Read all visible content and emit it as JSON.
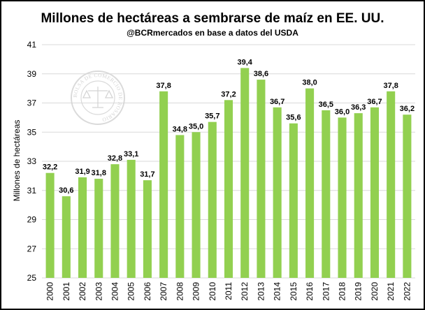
{
  "chart_data": {
    "type": "bar",
    "title": "Millones de hectáreas a sembrarse de maíz en EE. UU.",
    "subtitle": "@BCRmercados en base a datos del USDA",
    "xlabel": "",
    "ylabel": "Millones de hectáreas",
    "ylim": [
      25,
      41
    ],
    "yticks": [
      "25",
      "27",
      "29",
      "31",
      "33",
      "35",
      "37",
      "39",
      "41"
    ],
    "grid": true,
    "bar_color": "#92d050",
    "categories": [
      "2000",
      "2001",
      "2002",
      "2003",
      "2004",
      "2005",
      "2006",
      "2007",
      "2008",
      "2009",
      "2010",
      "2011",
      "2012",
      "2013",
      "2014",
      "2015",
      "2016",
      "2017",
      "2018",
      "2019",
      "2020",
      "2021",
      "2022"
    ],
    "values": [
      32.2,
      30.6,
      31.9,
      31.8,
      32.8,
      33.1,
      31.7,
      37.8,
      34.8,
      35.0,
      35.7,
      37.2,
      39.4,
      38.6,
      36.7,
      35.6,
      38.0,
      36.5,
      36.0,
      36.3,
      36.7,
      37.8,
      36.2
    ],
    "data_labels": [
      "32,2",
      "30,6",
      "31,9",
      "31,8",
      "32,8",
      "33,1",
      "31,7",
      "37,8",
      "34,8",
      "35,0",
      "35,7",
      "37,2",
      "39,4",
      "38,6",
      "36,7",
      "35,6",
      "38,0",
      "36,5",
      "36,0",
      "36,3",
      "36,7",
      "37,8",
      "36,2"
    ]
  },
  "watermark": {
    "text": "BOLSA DE COMERCIO DE ROSARIO",
    "color": "#d0d0d0"
  }
}
